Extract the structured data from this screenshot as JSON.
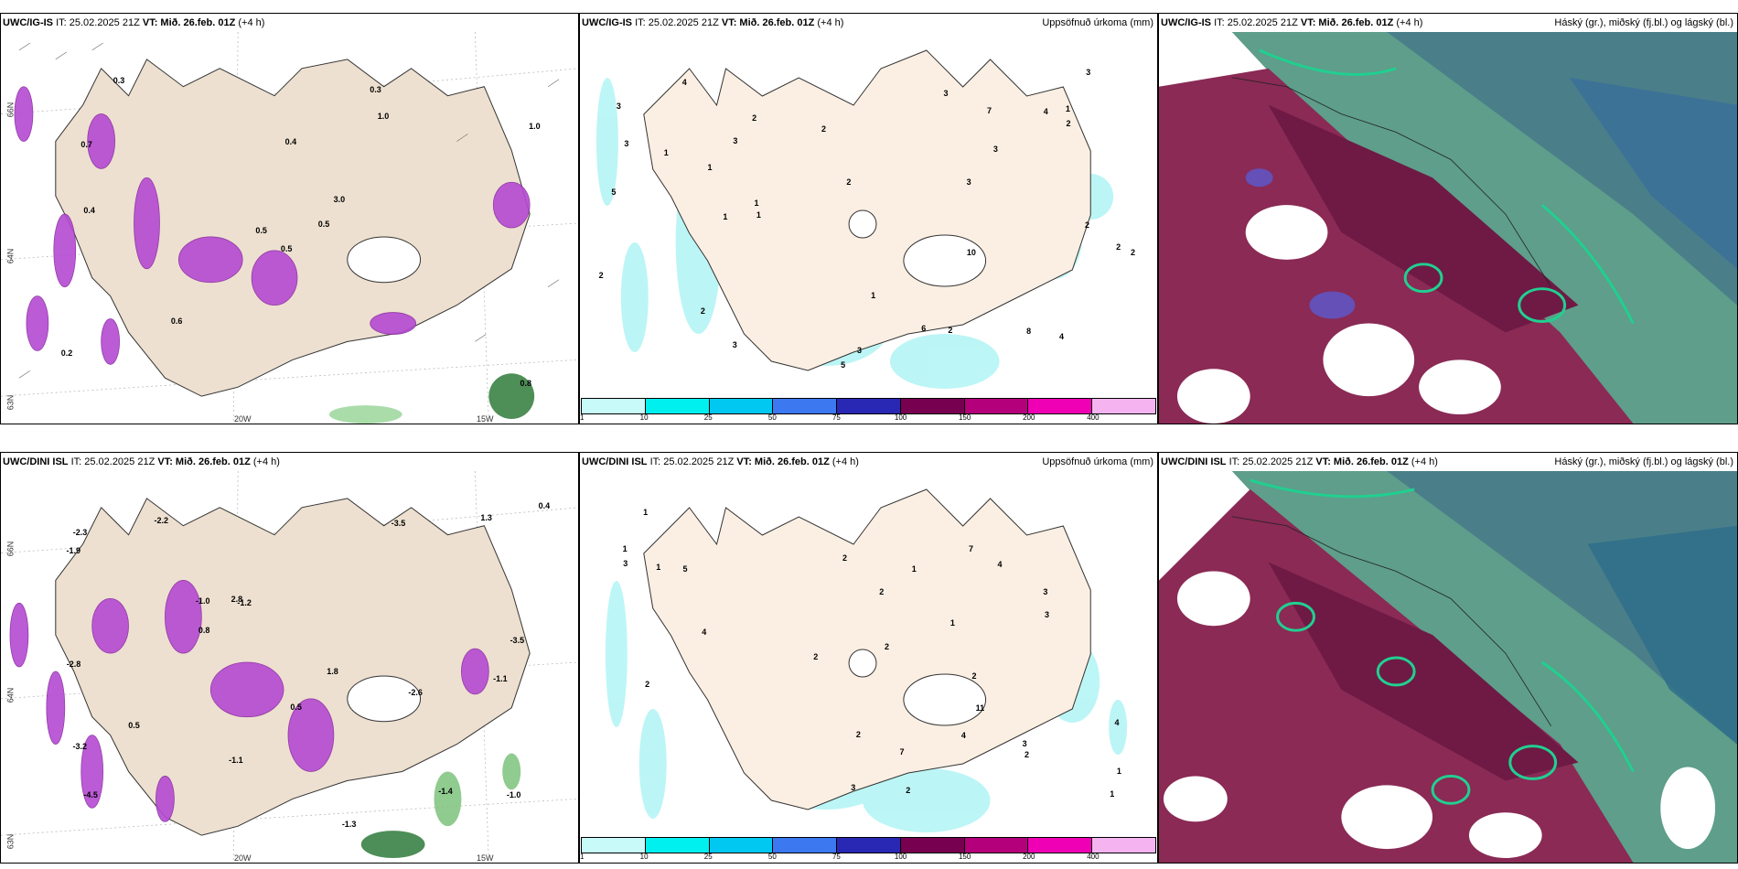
{
  "rows": [
    {
      "model": "UWC/IG-IS",
      "it_label": "IT: 25.02.2025 21Z",
      "vt_prefix": "VT: Mið. 26.feb. 01Z",
      "vt_suffix": "(+4 h)"
    },
    {
      "model": "UWC/DINI ISL",
      "it_label": "IT: 25.02.2025 21Z",
      "vt_prefix": "VT: Mið. 26.feb. 01Z",
      "vt_suffix": "(+4 h)"
    }
  ],
  "precip_title": "Uppsöfnuð úrkoma (mm)",
  "cloud_title": "Háský (gr.), miðský (fj.bl.) og lágský (bl.)",
  "colorbar": {
    "ticks": [
      "1",
      "10",
      "25",
      "50",
      "75",
      "100",
      "150",
      "200",
      "400"
    ],
    "colors": [
      "#c8fafa",
      "#00f0f0",
      "#00c8f0",
      "#3c78f0",
      "#2828b4",
      "#780050",
      "#b4007a",
      "#f000b4",
      "#f5b4f0"
    ]
  },
  "axis_labels": {
    "lon_20": "20W",
    "lon_15": "15W",
    "lat_66": "66N",
    "lat_64": "64N",
    "lat_63": "63N"
  },
  "temp_values_top": [
    "0.5",
    "0.7",
    "0.5",
    "0.2",
    "3.0",
    "0.6",
    "0.3",
    "0.4",
    "1.0",
    "0.5",
    "0.3",
    "0.8",
    "0.4",
    "1.0"
  ],
  "temp_values_bottom": [
    "-2.6",
    "-1.1",
    "-4.5",
    "-2.2",
    "-1.2",
    "-1.4",
    "-3.2",
    "-3.5",
    "-1.0",
    "-1.3",
    "-1.9",
    "-2.8",
    "-2.3",
    "-1.0",
    "-1.1",
    "-3.5",
    "0.5",
    "1.8",
    "2.8",
    "0.5",
    "0.4",
    "1.3",
    "0.8"
  ],
  "precip_values_top": [
    "3",
    "3",
    "3",
    "3",
    "4",
    "5",
    "10",
    "1",
    "1",
    "2",
    "2",
    "2",
    "3",
    "2",
    "5",
    "3",
    "1",
    "2",
    "4",
    "6",
    "8",
    "2",
    "2",
    "1",
    "7",
    "1",
    "2",
    "3",
    "4",
    "1",
    "2",
    "2",
    "3",
    "1",
    "3"
  ],
  "precip_values_bottom": [
    "2",
    "2",
    "1",
    "3",
    "3",
    "2",
    "2",
    "7",
    "4",
    "2",
    "3",
    "1",
    "2",
    "1",
    "1",
    "4",
    "4",
    "4",
    "7",
    "11",
    "3",
    "2",
    "1",
    "2",
    "3",
    "5",
    "1",
    "1",
    "2"
  ]
}
